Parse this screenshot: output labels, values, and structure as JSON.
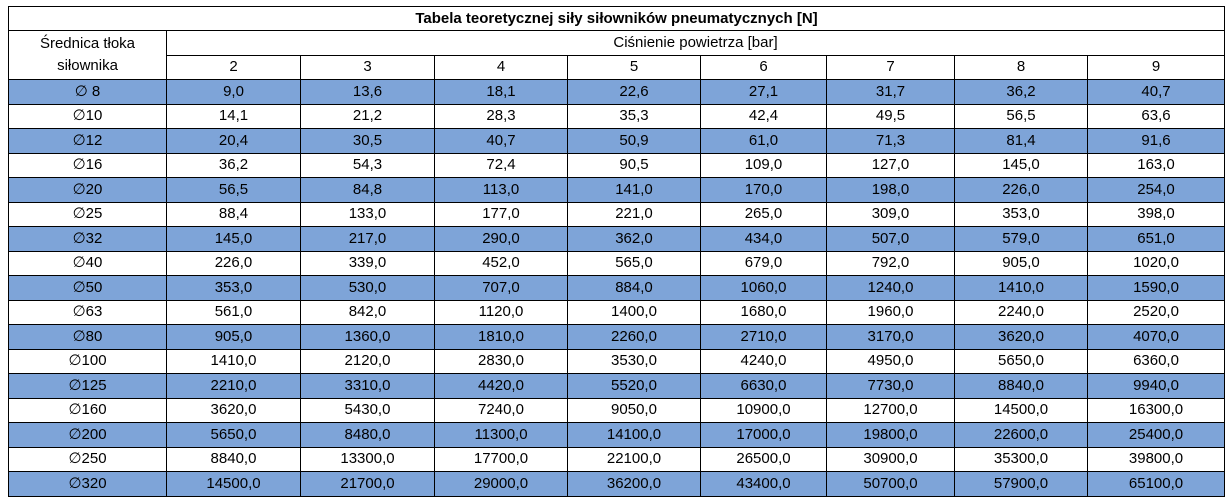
{
  "table": {
    "title": "Tabela teoretycznej siły siłowników pneumatycznych [N]",
    "row_header": "Średnica tłoka siłownika",
    "pressure_header": "Ciśnienie powietrza [bar]",
    "pressures": [
      "2",
      "3",
      "4",
      "5",
      "6",
      "7",
      "8",
      "9"
    ],
    "rows": [
      [
        "∅ 8",
        "9,0",
        "13,6",
        "18,1",
        "22,6",
        "27,1",
        "31,7",
        "36,2",
        "40,7"
      ],
      [
        "∅10",
        "14,1",
        "21,2",
        "28,3",
        "35,3",
        "42,4",
        "49,5",
        "56,5",
        "63,6"
      ],
      [
        "∅12",
        "20,4",
        "30,5",
        "40,7",
        "50,9",
        "61,0",
        "71,3",
        "81,4",
        "91,6"
      ],
      [
        "∅16",
        "36,2",
        "54,3",
        "72,4",
        "90,5",
        "109,0",
        "127,0",
        "145,0",
        "163,0"
      ],
      [
        "∅20",
        "56,5",
        "84,8",
        "113,0",
        "141,0",
        "170,0",
        "198,0",
        "226,0",
        "254,0"
      ],
      [
        "∅25",
        "88,4",
        "133,0",
        "177,0",
        "221,0",
        "265,0",
        "309,0",
        "353,0",
        "398,0"
      ],
      [
        "∅32",
        "145,0",
        "217,0",
        "290,0",
        "362,0",
        "434,0",
        "507,0",
        "579,0",
        "651,0"
      ],
      [
        "∅40",
        "226,0",
        "339,0",
        "452,0",
        "565,0",
        "679,0",
        "792,0",
        "905,0",
        "1020,0"
      ],
      [
        "∅50",
        "353,0",
        "530,0",
        "707,0",
        "884,0",
        "1060,0",
        "1240,0",
        "1410,0",
        "1590,0"
      ],
      [
        "∅63",
        "561,0",
        "842,0",
        "1120,0",
        "1400,0",
        "1680,0",
        "1960,0",
        "2240,0",
        "2520,0"
      ],
      [
        "∅80",
        "905,0",
        "1360,0",
        "1810,0",
        "2260,0",
        "2710,0",
        "3170,0",
        "3620,0",
        "4070,0"
      ],
      [
        "∅100",
        "1410,0",
        "2120,0",
        "2830,0",
        "3530,0",
        "4240,0",
        "4950,0",
        "5650,0",
        "6360,0"
      ],
      [
        "∅125",
        "2210,0",
        "3310,0",
        "4420,0",
        "5520,0",
        "6630,0",
        "7730,0",
        "8840,0",
        "9940,0"
      ],
      [
        "∅160",
        "3620,0",
        "5430,0",
        "7240,0",
        "9050,0",
        "10900,0",
        "12700,0",
        "14500,0",
        "16300,0"
      ],
      [
        "∅200",
        "5650,0",
        "8480,0",
        "11300,0",
        "14100,0",
        "17000,0",
        "19800,0",
        "22600,0",
        "25400,0"
      ],
      [
        "∅250",
        "8840,0",
        "13300,0",
        "17700,0",
        "22100,0",
        "26500,0",
        "30900,0",
        "35300,0",
        "39800,0"
      ],
      [
        "∅320",
        "14500,0",
        "21700,0",
        "29000,0",
        "36200,0",
        "43400,0",
        "50700,0",
        "57900,0",
        "65100,0"
      ]
    ]
  }
}
